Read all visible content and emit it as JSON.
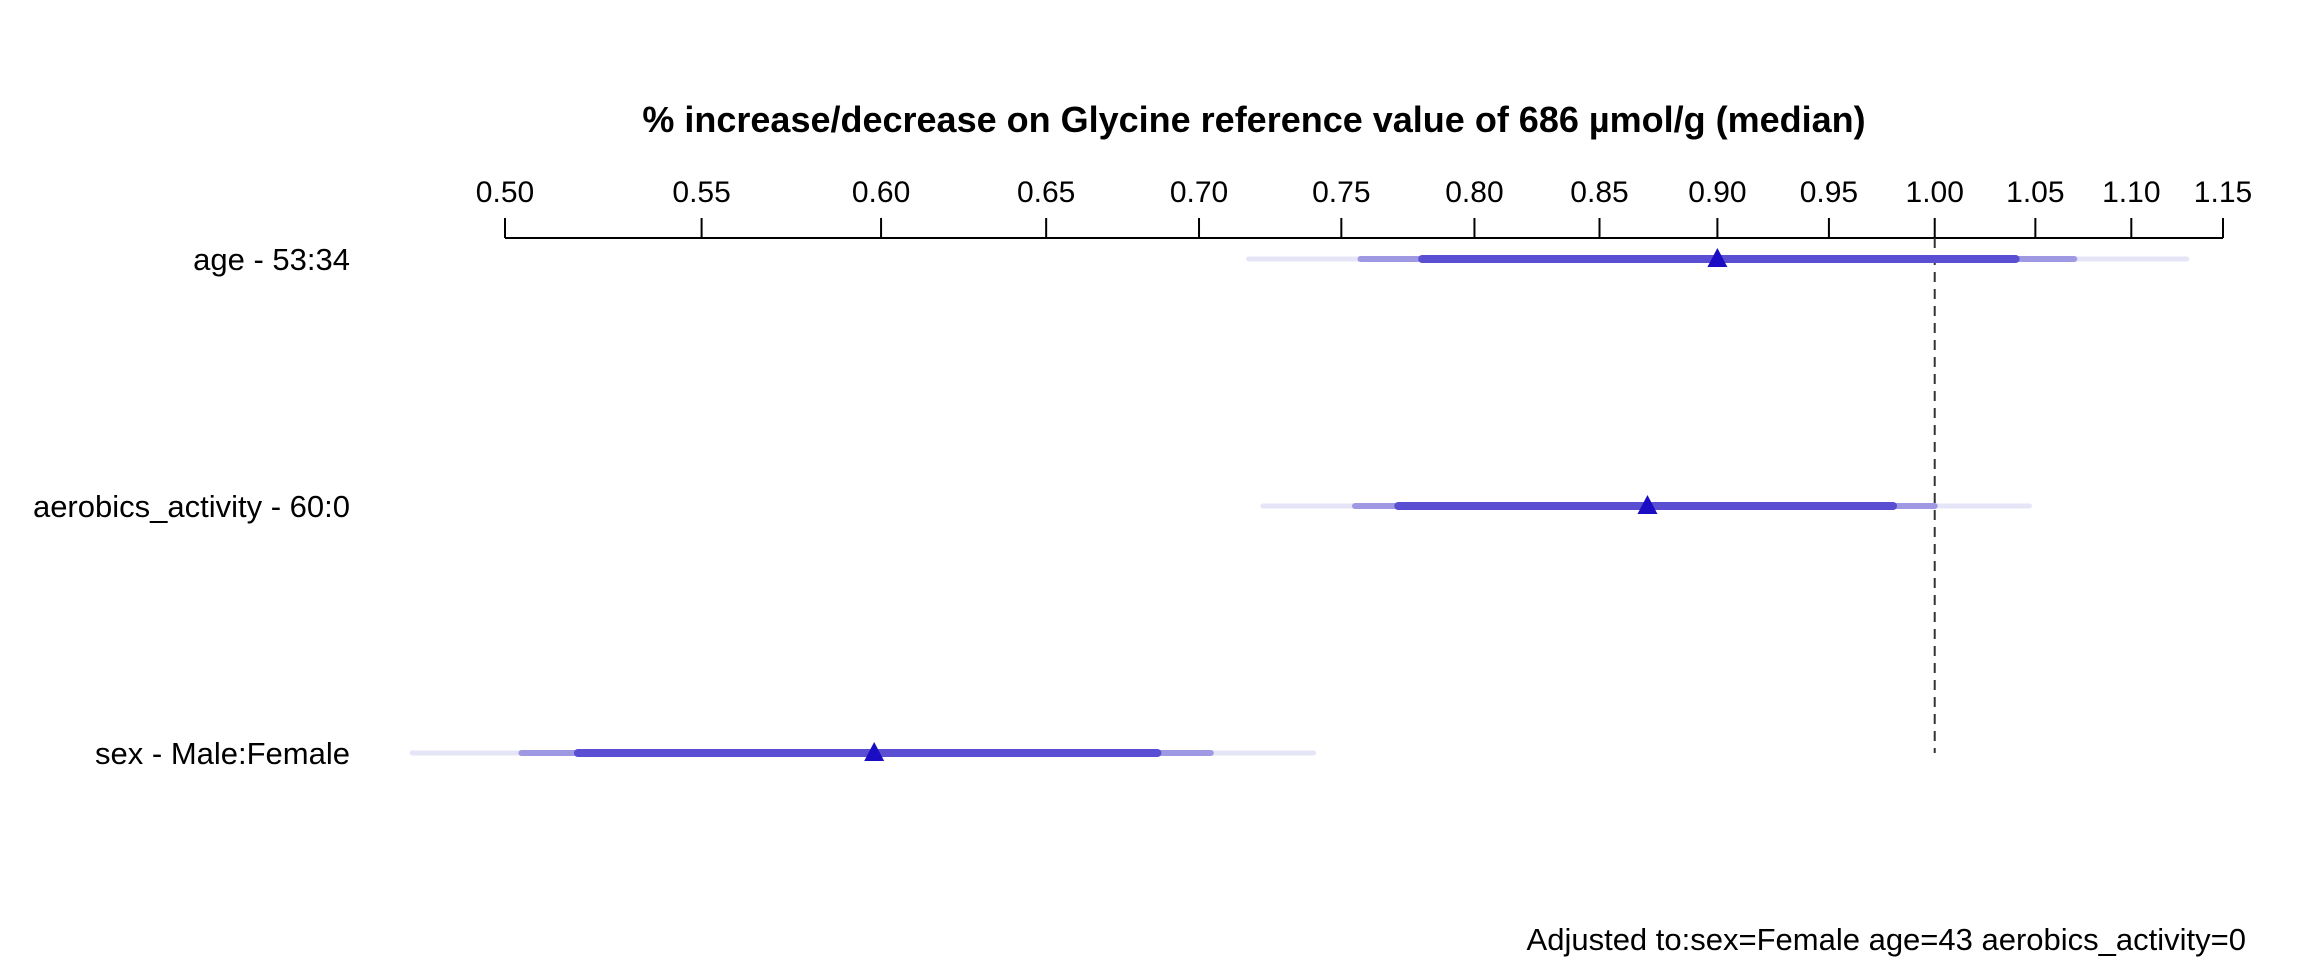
{
  "colors": {
    "band_outer": "#e6e4f7",
    "band_middle": "#9f99e3",
    "band_inner": "#5a4fd2",
    "marker": "#1a0dc4"
  },
  "footnote": "Adjusted to:sex=Female age=43 aerobics_activity=0",
  "chart_data": {
    "type": "interval",
    "title": "% increase/decrease on Glycine reference value of 686 µmol/g (median)",
    "x_scale": "log",
    "xlim": [
      0.5,
      1.15
    ],
    "x_ticks": [
      0.5,
      0.55,
      0.6,
      0.65,
      0.7,
      0.75,
      0.8,
      0.85,
      0.9,
      0.95,
      1.0,
      1.05,
      1.1,
      1.15
    ],
    "x_tick_labels": [
      "0.50",
      "0.55",
      "0.60",
      "0.65",
      "0.70",
      "0.75",
      "0.80",
      "0.85",
      "0.90",
      "0.95",
      "1.00",
      "1.05",
      "1.10",
      "1.15"
    ],
    "reference_line": 1.0,
    "rows": [
      {
        "label": "age - 53:34",
        "estimate": 0.9,
        "inner": [
          0.78,
          1.04
        ],
        "middle": [
          0.757,
          1.07
        ],
        "outer": [
          0.717,
          1.13
        ]
      },
      {
        "label": "aerobics_activity - 60:0",
        "estimate": 0.87,
        "inner": [
          0.771,
          0.98
        ],
        "middle": [
          0.755,
          1.0
        ],
        "outer": [
          0.722,
          1.047
        ]
      },
      {
        "label": "sex - Male:Female",
        "estimate": 0.598,
        "inner": [
          0.518,
          0.686
        ],
        "middle": [
          0.504,
          0.704
        ],
        "outer": [
          0.478,
          0.74
        ]
      }
    ]
  }
}
